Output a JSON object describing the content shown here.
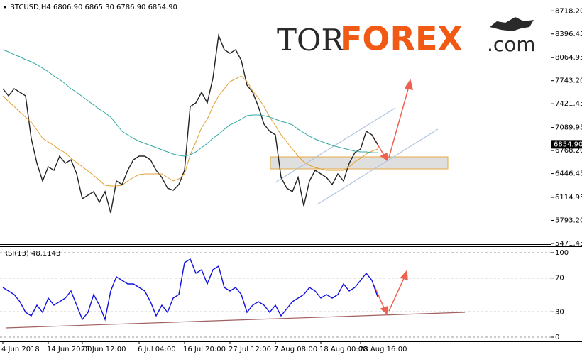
{
  "logo": {
    "part1": "TOR",
    "part2": "FOREX",
    "part3": ".com"
  },
  "chart_data": [
    {
      "type": "line",
      "title": "BTCUSD,H4  6806.90 6865.30 6786.90 6854.90",
      "categories": [
        "4 Jun 2018",
        null,
        null,
        null,
        null,
        null,
        null,
        null,
        "14 Jun 20:00",
        null,
        null,
        null,
        null,
        null,
        "25 Jun 12:00",
        null,
        null,
        null,
        null,
        null,
        null,
        null,
        null,
        null,
        "6 Jul 04:00",
        null,
        null,
        null,
        null,
        null,
        null,
        null,
        "16 Jul 20:00",
        null,
        null,
        null,
        null,
        null,
        null,
        null,
        "27 Jul 12:00",
        null,
        null,
        null,
        null,
        null,
        null,
        null,
        "7 Aug 08:00",
        null,
        null,
        null,
        null,
        null,
        null,
        null,
        "18 Aug 00:00",
        null,
        null,
        null,
        null,
        null,
        null,
        "28 Aug 16:00",
        null,
        null,
        null
      ],
      "series": [
        {
          "color": "#222222",
          "values": [
            7631,
            7532,
            7631,
            7582,
            7532,
            6938,
            6591,
            6343,
            6541,
            6492,
            6690,
            6591,
            6640,
            6442,
            6096,
            6145,
            6195,
            6046,
            6195,
            5897,
            6343,
            6294,
            6492,
            6640,
            6690,
            6690,
            6640,
            6492,
            6393,
            6244,
            6214,
            6294,
            6492,
            7383,
            7433,
            7582,
            7433,
            7780,
            8374,
            8176,
            8126,
            8176,
            8027,
            7681,
            7582,
            7383,
            7136,
            7037,
            6987,
            6393,
            6244,
            6195,
            6393,
            5996,
            6343,
            6492,
            6442,
            6393,
            6294,
            6442,
            6343,
            6591,
            6739,
            6789,
            7037,
            6987,
            6855
          ]
        },
        {
          "color": "#e0a030",
          "values": [
            7532,
            7453,
            7383,
            7304,
            7235,
            7165,
            7056,
            6938,
            6888,
            6839,
            6779,
            6739,
            6660,
            6601,
            6541,
            6482,
            6422,
            6353,
            6284,
            6274,
            6274,
            6284,
            6343,
            6393,
            6432,
            6442,
            6442,
            6442,
            6442,
            6393,
            6343,
            6373,
            6442,
            6710,
            6888,
            7086,
            7205,
            7383,
            7532,
            7631,
            7730,
            7770,
            7809,
            7730,
            7601,
            7502,
            7383,
            7235,
            7116,
            6987,
            6888,
            6789,
            6690,
            6611,
            6561,
            6531,
            6512,
            6492,
            6492,
            6492,
            6492,
            6541,
            6611,
            6660,
            6720,
            6759,
            6789
          ]
        },
        {
          "color": "#30a8a0",
          "values": [
            8176,
            8146,
            8107,
            8077,
            8037,
            8008,
            7968,
            7918,
            7869,
            7809,
            7760,
            7700,
            7631,
            7582,
            7522,
            7463,
            7403,
            7344,
            7294,
            7235,
            7136,
            7037,
            6987,
            6938,
            6898,
            6868,
            6839,
            6809,
            6779,
            6749,
            6720,
            6700,
            6690,
            6710,
            6749,
            6809,
            6868,
            6938,
            6997,
            7066,
            7126,
            7165,
            7205,
            7255,
            7265,
            7265,
            7255,
            7235,
            7205,
            7175,
            7156,
            7126,
            7066,
            7017,
            6967,
            6928,
            6898,
            6868,
            6839,
            6819,
            6799,
            6779,
            6759,
            6749,
            6749,
            6739,
            6739
          ]
        }
      ],
      "ylim": [
        5471.45,
        8830
      ],
      "yticks": [
        {
          "value": 8718.2,
          "label": "8718.20"
        },
        {
          "value": 8396.45,
          "label": "8396.45"
        },
        {
          "value": 8064.95,
          "label": "8064.95"
        },
        {
          "value": 7743.2,
          "label": "7743.20"
        },
        {
          "value": 7421.45,
          "label": "7421.45"
        },
        {
          "value": 7089.95,
          "label": "7089.95"
        },
        {
          "value": 6768.2,
          "label": "6768.20"
        },
        {
          "value": 6446.45,
          "label": "6446.45"
        },
        {
          "value": 6114.95,
          "label": "6114.95"
        },
        {
          "value": 5793.2,
          "label": "5793.20"
        },
        {
          "value": 5471.45,
          "label": "5471.45"
        }
      ],
      "last_price": {
        "value": 6854.9,
        "label": "6854.90"
      },
      "grid": false
    },
    {
      "type": "line",
      "title": "RSI(13) 48.1143",
      "series": [
        {
          "color": "#1010e0",
          "values": [
            58.8,
            54.6,
            50.4,
            42.0,
            29.4,
            25.2,
            37.8,
            29.4,
            46.2,
            37.8,
            42.0,
            46.2,
            54.6,
            37.8,
            21.0,
            29.4,
            50.4,
            37.8,
            21.0,
            54.6,
            71.4,
            67.2,
            63.0,
            63.0,
            58.8,
            54.6,
            42.0,
            25.2,
            37.8,
            29.4,
            46.2,
            50.4,
            88.2,
            92.4,
            75.6,
            79.8,
            63.0,
            79.8,
            84.0,
            58.8,
            54.6,
            58.8,
            50.4,
            29.4,
            37.8,
            42.0,
            37.8,
            29.4,
            37.8,
            25.2,
            33.6,
            42.0,
            46.2,
            50.4,
            58.8,
            54.6,
            46.2,
            50.4,
            46.2,
            50.4,
            63.0,
            54.6,
            58.8,
            67.2,
            75.6,
            67.2,
            48.1
          ]
        }
      ],
      "ylim": [
        0,
        100
      ],
      "yticks": [
        100,
        70,
        30,
        0
      ],
      "grid": true
    }
  ]
}
